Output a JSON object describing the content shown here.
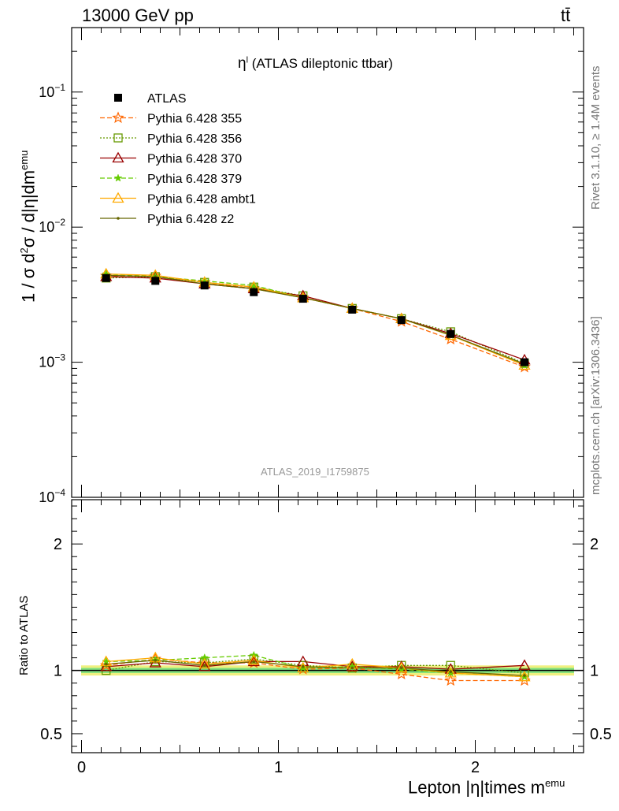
{
  "header": {
    "energy_label": "13000 GeV pp",
    "process_label": "tt̄"
  },
  "side_texts": {
    "rivet": "Rivet 3.1.10, ≥ 1.4M events",
    "mcplots": "mcplots.cern.ch [arXiv:1306.3436]"
  },
  "chart_data": [
    {
      "type": "line",
      "title": "η^l (ATLAS dileptonic ttbar)",
      "title_main": "η",
      "title_sup": "l",
      "title_rest": " (ATLAS dileptonic ttbar)",
      "watermark": "ATLAS_2019_I1759875",
      "ylabel": "1 / σ d²σ / d|η|dm^emu",
      "ylabel_parts": {
        "a": "1 / σ d",
        "sup1": "2",
        "b": "σ / d|η|dm",
        "sup2": "emu"
      },
      "yscale": "log",
      "ylim": [
        0.0001,
        0.3
      ],
      "xlim": [
        -0.05,
        2.55
      ],
      "y_ticks": [
        {
          "value": 0.1,
          "base": "10",
          "exp": "−1"
        },
        {
          "value": 0.01,
          "base": "10",
          "exp": "−2"
        },
        {
          "value": 0.001,
          "base": "10",
          "exp": "−3"
        },
        {
          "value": 0.0001,
          "base": "10",
          "exp": "−4"
        }
      ],
      "grid": false,
      "legend_position": "top-left",
      "x": [
        0.125,
        0.375,
        0.625,
        0.875,
        1.125,
        1.375,
        1.625,
        1.875,
        2.25
      ],
      "series": [
        {
          "name": "ATLAS",
          "color": "#000000",
          "marker": "filled-square",
          "dash": "none",
          "values": [
            0.0042,
            0.004,
            0.0037,
            0.0033,
            0.00295,
            0.00245,
            0.00205,
            0.00162,
            0.001
          ]
        },
        {
          "name": "Pythia 6.428 355",
          "color": "#ff6600",
          "marker": "open-star",
          "dash": "6,3",
          "values": [
            0.00435,
            0.00435,
            0.0039,
            0.0035,
            0.003,
            0.0025,
            0.002,
            0.00148,
            0.00092
          ]
        },
        {
          "name": "Pythia 6.428 356",
          "color": "#669900",
          "marker": "open-square",
          "dash": "2,2",
          "values": [
            0.0042,
            0.0043,
            0.0039,
            0.0036,
            0.0031,
            0.0025,
            0.0021,
            0.00168,
            0.00098
          ]
        },
        {
          "name": "Pythia 6.428 370",
          "color": "#990000",
          "marker": "open-triangle",
          "dash": "none",
          "values": [
            0.0043,
            0.0042,
            0.0038,
            0.0035,
            0.0031,
            0.0025,
            0.0021,
            0.00163,
            0.00104
          ]
        },
        {
          "name": "Pythia 6.428 379",
          "color": "#66cc00",
          "marker": "filled-star",
          "dash": "6,3",
          "values": [
            0.0045,
            0.0043,
            0.004,
            0.0037,
            0.003,
            0.0025,
            0.0021,
            0.00158,
            0.00095
          ]
        },
        {
          "name": "Pythia 6.428 ambt1",
          "color": "#ffaa00",
          "marker": "open-triangle",
          "dash": "none",
          "values": [
            0.0045,
            0.0044,
            0.0039,
            0.0036,
            0.003,
            0.0025,
            0.0021,
            0.00158,
            0.00095
          ]
        },
        {
          "name": "Pythia 6.428 z2",
          "color": "#666600",
          "marker": "dot",
          "dash": "none",
          "values": [
            0.0044,
            0.0043,
            0.0038,
            0.0035,
            0.003,
            0.0025,
            0.0021,
            0.00159,
            0.00097
          ]
        }
      ]
    },
    {
      "type": "line",
      "title": "",
      "ylabel": "Ratio to ATLAS",
      "xlabel": "Lepton |η|times m^emu",
      "xlabel_parts": {
        "a": "Lepton |η|times m",
        "sup": "emu"
      },
      "yscale": "linear",
      "ylim": [
        0.35,
        2.35
      ],
      "xlim": [
        -0.05,
        2.55
      ],
      "y_ticks": [
        0.5,
        1,
        2
      ],
      "y_tick_labels": [
        "0.5",
        "1",
        "2"
      ],
      "x_ticks": [
        0,
        1,
        2
      ],
      "x_tick_labels": [
        "0",
        "1",
        "2"
      ],
      "band": {
        "inner_halfwidth": 0.02,
        "outer_halfwidth": 0.04,
        "inner_color": "#7fe07f",
        "outer_color": "#f0f080"
      },
      "reference": 1.0,
      "x": [
        0.125,
        0.375,
        0.625,
        0.875,
        1.125,
        1.375,
        1.625,
        1.875,
        2.25
      ],
      "series": [
        {
          "name": "Pythia 6.428 355",
          "values": [
            1.04,
            1.09,
            1.06,
            1.06,
            1.01,
            1.02,
            0.97,
            0.92,
            0.92
          ]
        },
        {
          "name": "Pythia 6.428 356",
          "values": [
            1.0,
            1.07,
            1.06,
            1.09,
            1.04,
            1.02,
            1.04,
            1.04,
            0.98
          ]
        },
        {
          "name": "Pythia 6.428 370",
          "values": [
            1.03,
            1.06,
            1.03,
            1.07,
            1.07,
            1.03,
            1.03,
            1.01,
            1.04
          ]
        },
        {
          "name": "Pythia 6.428 379",
          "values": [
            1.07,
            1.08,
            1.1,
            1.12,
            1.02,
            1.03,
            1.01,
            0.98,
            0.95
          ]
        },
        {
          "name": "Pythia 6.428 ambt1",
          "values": [
            1.07,
            1.1,
            1.05,
            1.08,
            1.02,
            1.05,
            1.02,
            0.98,
            0.95
          ]
        },
        {
          "name": "Pythia 6.428 z2",
          "values": [
            1.05,
            1.08,
            1.04,
            1.07,
            1.03,
            1.02,
            1.02,
            0.99,
            0.96
          ]
        }
      ]
    }
  ]
}
